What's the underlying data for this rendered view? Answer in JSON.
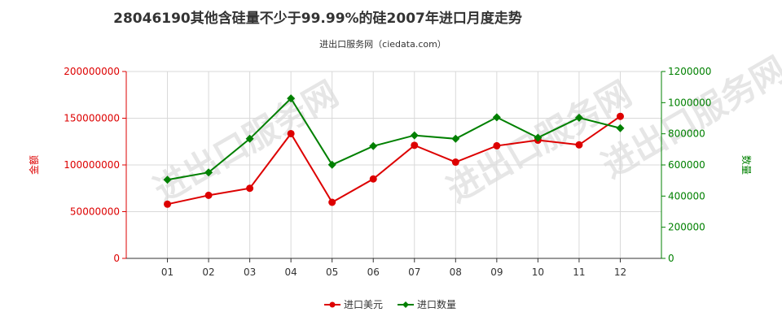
{
  "chart_data": {
    "type": "line",
    "title": "28046190其他含硅量不少于99.99%的硅2007年进口月度走势",
    "subtitle": "进出口服务网（ciedata.com）",
    "watermark": "进出口服务网",
    "categories": [
      "01",
      "02",
      "03",
      "04",
      "05",
      "06",
      "07",
      "08",
      "09",
      "10",
      "11",
      "12"
    ],
    "series": [
      {
        "name": "进口美元",
        "axis": "left",
        "color": "#dd0000",
        "values": [
          58000000,
          67500000,
          75000000,
          133500000,
          60000000,
          85000000,
          121000000,
          103000000,
          120500000,
          126500000,
          121500000,
          152000000
        ]
      },
      {
        "name": "进口数量",
        "axis": "right",
        "color": "#008000",
        "values": [
          505000,
          552000,
          768000,
          1027000,
          601000,
          721000,
          790000,
          768000,
          906000,
          775000,
          903000,
          836000
        ]
      }
    ],
    "y_left": {
      "label": "金额",
      "ylim": [
        0,
        200000000
      ],
      "ticks": [
        "0",
        "50000000",
        "100000000",
        "150000000",
        "200000000"
      ]
    },
    "y_right": {
      "label": "数量",
      "ylim": [
        0,
        1200000
      ],
      "ticks": [
        "0",
        "200000",
        "400000",
        "600000",
        "800000",
        "1000000",
        "1200000"
      ]
    },
    "grid": true,
    "legend_position": "bottom-center"
  }
}
